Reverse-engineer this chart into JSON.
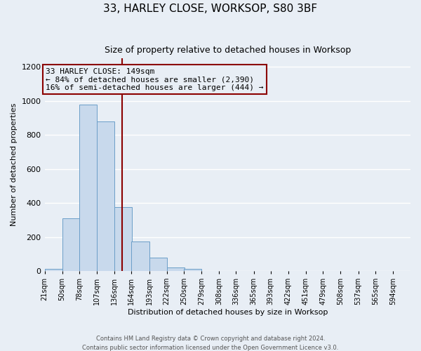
{
  "title": "33, HARLEY CLOSE, WORKSOP, S80 3BF",
  "subtitle": "Size of property relative to detached houses in Worksop",
  "xlabel": "Distribution of detached houses by size in Worksop",
  "ylabel": "Number of detached properties",
  "footer_line1": "Contains HM Land Registry data © Crown copyright and database right 2024.",
  "footer_line2": "Contains public sector information licensed under the Open Government Licence v3.0.",
  "bin_labels": [
    "21sqm",
    "50sqm",
    "78sqm",
    "107sqm",
    "136sqm",
    "164sqm",
    "193sqm",
    "222sqm",
    "250sqm",
    "279sqm",
    "308sqm",
    "336sqm",
    "365sqm",
    "393sqm",
    "422sqm",
    "451sqm",
    "479sqm",
    "508sqm",
    "537sqm",
    "565sqm",
    "594sqm"
  ],
  "bar_values": [
    10,
    310,
    980,
    880,
    375,
    175,
    80,
    20,
    10,
    0,
    0,
    0,
    0,
    0,
    0,
    0,
    0,
    0,
    0,
    0
  ],
  "bar_left_edges": [
    21,
    50,
    78,
    107,
    136,
    164,
    193,
    222,
    250,
    279,
    308,
    336,
    365,
    393,
    422,
    451,
    479,
    508,
    537,
    565
  ],
  "bin_width": 29,
  "bar_color": "#c8d9ec",
  "bar_edge_color": "#6b9ec8",
  "ylim": [
    0,
    1250
  ],
  "yticks": [
    0,
    200,
    400,
    600,
    800,
    1000,
    1200
  ],
  "xlim_left": 21,
  "xlim_right": 623,
  "property_line_x": 149,
  "property_line_color": "#8b0000",
  "annotation_text_line1": "33 HARLEY CLOSE: 149sqm",
  "annotation_text_line2": "← 84% of detached houses are smaller (2,390)",
  "annotation_text_line3": "16% of semi-detached houses are larger (444) →",
  "annotation_box_color": "#8b0000",
  "background_color": "#e8eef5",
  "plot_bg_color": "#e8eef5",
  "grid_color": "#ffffff",
  "title_fontsize": 11,
  "subtitle_fontsize": 9,
  "axis_label_fontsize": 8,
  "tick_fontsize": 7,
  "annot_fontsize": 8,
  "footer_fontsize": 6
}
